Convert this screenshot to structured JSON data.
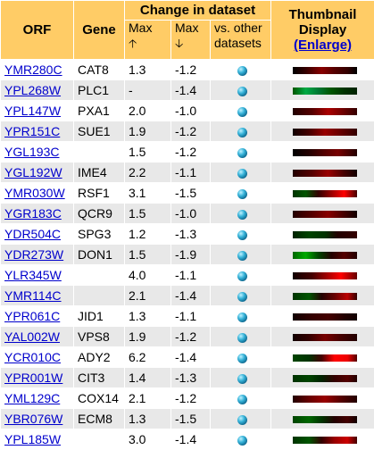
{
  "headers": {
    "orf": "ORF",
    "gene": "Gene",
    "change_group": "Change in dataset",
    "max_up": "Max",
    "max_down": "Max",
    "vs_line1": "vs. other",
    "vs_line2": "datasets",
    "thumb_line1": "Thumbnail",
    "thumb_line2": "Display",
    "enlarge": "(Enlarge)"
  },
  "icons": {
    "up": "up-arrow-icon",
    "down": "down-arrow-icon",
    "compare": "sphere-icon"
  },
  "colors": {
    "header_bg": "#ffcc66",
    "link": "#0000cc",
    "row_alt": "#e8e8e8"
  },
  "rows": [
    {
      "orf": "YMR280C",
      "gene": "CAT8",
      "up": "1.3",
      "down": "-1.2",
      "thumb": "linear-gradient(90deg,#000 0%,#300 20%,#800 45%,#500 65%,#300 85%,#000 100%)"
    },
    {
      "orf": "YPL268W",
      "gene": "PLC1",
      "up": "-",
      "down": "-1.4",
      "thumb": "linear-gradient(90deg,#050 0%,#0a4 20%,#073 40%,#050 60%,#030 80%,#020 100%)"
    },
    {
      "orf": "YPL147W",
      "gene": "PXA1",
      "up": "2.0",
      "down": "-1.0",
      "thumb": "linear-gradient(90deg,#200 0%,#500 30%,#a00 55%,#700 75%,#300 100%)"
    },
    {
      "orf": "YPR151C",
      "gene": "SUE1",
      "up": "1.9",
      "down": "-1.2",
      "thumb": "linear-gradient(90deg,#100 0%,#400 25%,#900 50%,#600 75%,#300 100%)"
    },
    {
      "orf": "YGL193C",
      "gene": "",
      "up": "1.5",
      "down": "-1.2",
      "thumb": "linear-gradient(90deg,#000 0%,#200 25%,#500 50%,#700 70%,#200 100%)"
    },
    {
      "orf": "YGL192W",
      "gene": "IME4",
      "up": "2.2",
      "down": "-1.1",
      "thumb": "linear-gradient(90deg,#200 0%,#500 30%,#900 55%,#400 80%,#100 100%)"
    },
    {
      "orf": "YMR030W",
      "gene": "RSF1",
      "up": "3.1",
      "down": "-1.5",
      "thumb": "linear-gradient(90deg,#030 0%,#050 20%,#300 40%,#900 60%,#f00 80%,#400 100%)"
    },
    {
      "orf": "YGR183C",
      "gene": "QCR9",
      "up": "1.5",
      "down": "-1.0",
      "thumb": "linear-gradient(90deg,#200 0%,#500 30%,#800 55%,#400 80%,#100 100%)"
    },
    {
      "orf": "YDR504C",
      "gene": "SPG3",
      "up": "1.2",
      "down": "-1.3",
      "thumb": "linear-gradient(90deg,#020 0%,#040 25%,#030 50%,#200 70%,#300 100%)"
    },
    {
      "orf": "YDR273W",
      "gene": "DON1",
      "up": "1.5",
      "down": "-1.9",
      "thumb": "linear-gradient(90deg,#060 0%,#0a0 20%,#040 40%,#200 60%,#500 80%,#200 100%)"
    },
    {
      "orf": "YLR345W",
      "gene": "",
      "up": "4.0",
      "down": "-1.1",
      "thumb": "linear-gradient(90deg,#100 0%,#400 30%,#a00 55%,#f00 75%,#600 100%)"
    },
    {
      "orf": "YMR114C",
      "gene": "",
      "up": "2.1",
      "down": "-1.4",
      "thumb": "linear-gradient(90deg,#030 0%,#050 25%,#200 45%,#600 65%,#b00 85%,#300 100%)"
    },
    {
      "orf": "YPR061C",
      "gene": "JID1",
      "up": "1.3",
      "down": "-1.1",
      "thumb": "linear-gradient(90deg,#100 0%,#300 30%,#400 55%,#200 80%,#100 100%)"
    },
    {
      "orf": "YAL002W",
      "gene": "VPS8",
      "up": "1.9",
      "down": "-1.2",
      "thumb": "linear-gradient(90deg,#100 0%,#300 25%,#700 50%,#400 75%,#200 100%)"
    },
    {
      "orf": "YCR010C",
      "gene": "ADY2",
      "up": "6.2",
      "down": "-1.4",
      "thumb": "linear-gradient(90deg,#040 0%,#030 25%,#400 45%,#f00 65%,#e00 85%,#500 100%)"
    },
    {
      "orf": "YPR001W",
      "gene": "CIT3",
      "up": "1.4",
      "down": "-1.3",
      "thumb": "linear-gradient(90deg,#030 0%,#040 25%,#020 45%,#300 65%,#500 85%,#200 100%)"
    },
    {
      "orf": "YML129C",
      "gene": "COX14",
      "up": "2.1",
      "down": "-1.2",
      "thumb": "linear-gradient(90deg,#200 0%,#600 25%,#900 50%,#500 75%,#200 100%)"
    },
    {
      "orf": "YBR076W",
      "gene": "ECM8",
      "up": "1.3",
      "down": "-1.5",
      "thumb": "linear-gradient(90deg,#040 0%,#060 25%,#030 45%,#200 65%,#400 85%,#100 100%)"
    },
    {
      "orf": "YPL185W",
      "gene": "",
      "up": "3.0",
      "down": "-1.4",
      "thumb": "linear-gradient(90deg,#030 0%,#050 25%,#300 45%,#900 65%,#c00 85%,#400 100%)"
    }
  ]
}
